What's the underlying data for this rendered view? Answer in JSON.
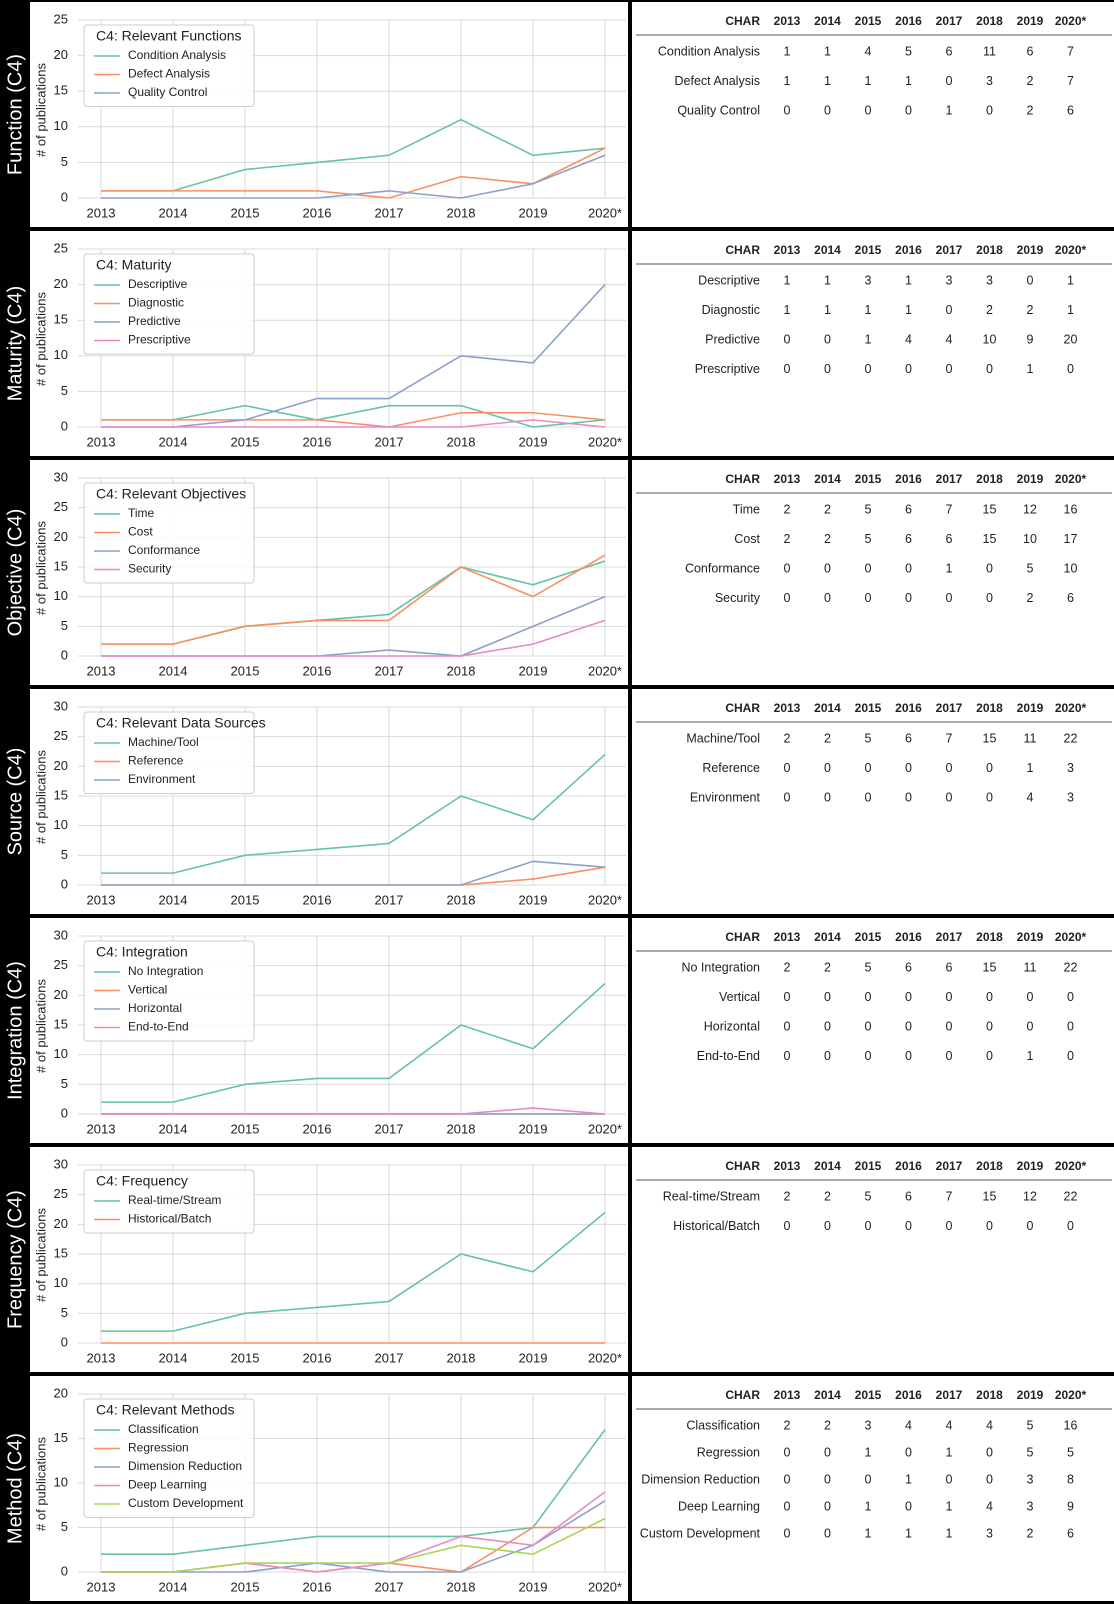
{
  "chart_data": [
    {
      "type": "line",
      "row_label": "Function (C4)",
      "ylabel": "# of publications",
      "legend_title": "C4: Relevant Functions",
      "table_header": "CHAR",
      "categories": [
        "2013",
        "2014",
        "2015",
        "2016",
        "2017",
        "2018",
        "2019",
        "2020*"
      ],
      "series": [
        {
          "name": "Condition Analysis",
          "color": "#66c2a5",
          "values": [
            1,
            1,
            4,
            5,
            6,
            11,
            6,
            7
          ]
        },
        {
          "name": "Defect Analysis",
          "color": "#fc8d62",
          "values": [
            1,
            1,
            1,
            1,
            0,
            3,
            2,
            7
          ]
        },
        {
          "name": "Quality Control",
          "color": "#8da0cb",
          "values": [
            0,
            0,
            0,
            0,
            1,
            0,
            2,
            6
          ]
        }
      ],
      "ylim": [
        0,
        25
      ],
      "yticks": [
        0,
        5,
        10,
        15,
        20,
        25
      ],
      "grid": true
    },
    {
      "type": "line",
      "row_label": "Maturity (C4)",
      "ylabel": "# of publications",
      "legend_title": "C4: Maturity",
      "table_header": "CHAR",
      "categories": [
        "2013",
        "2014",
        "2015",
        "2016",
        "2017",
        "2018",
        "2019",
        "2020*"
      ],
      "series": [
        {
          "name": "Descriptive",
          "color": "#66c2a5",
          "values": [
            1,
            1,
            3,
            1,
            3,
            3,
            0,
            1
          ]
        },
        {
          "name": "Diagnostic",
          "color": "#fc8d62",
          "values": [
            1,
            1,
            1,
            1,
            0,
            2,
            2,
            1
          ]
        },
        {
          "name": "Predictive",
          "color": "#8da0cb",
          "values": [
            0,
            0,
            1,
            4,
            4,
            10,
            9,
            20
          ]
        },
        {
          "name": "Prescriptive",
          "color": "#e78ac3",
          "values": [
            0,
            0,
            0,
            0,
            0,
            0,
            1,
            0
          ]
        }
      ],
      "ylim": [
        0,
        25
      ],
      "yticks": [
        0,
        5,
        10,
        15,
        20,
        25
      ],
      "grid": true
    },
    {
      "type": "line",
      "row_label": "Objective (C4)",
      "ylabel": "# of publications",
      "legend_title": "C4: Relevant Objectives",
      "table_header": "CHAR",
      "categories": [
        "2013",
        "2014",
        "2015",
        "2016",
        "2017",
        "2018",
        "2019",
        "2020*"
      ],
      "series": [
        {
          "name": "Time",
          "color": "#66c2a5",
          "values": [
            2,
            2,
            5,
            6,
            7,
            15,
            12,
            16
          ]
        },
        {
          "name": "Cost",
          "color": "#fc8d62",
          "values": [
            2,
            2,
            5,
            6,
            6,
            15,
            10,
            17
          ]
        },
        {
          "name": "Conformance",
          "color": "#8da0cb",
          "values": [
            0,
            0,
            0,
            0,
            1,
            0,
            5,
            10
          ]
        },
        {
          "name": "Security",
          "color": "#e78ac3",
          "values": [
            0,
            0,
            0,
            0,
            0,
            0,
            2,
            6
          ]
        }
      ],
      "ylim": [
        0,
        30
      ],
      "yticks": [
        0,
        5,
        10,
        15,
        20,
        25,
        30
      ],
      "grid": true
    },
    {
      "type": "line",
      "row_label": "Source (C4)",
      "ylabel": "# of publications",
      "legend_title": "C4: Relevant Data Sources",
      "table_header": "CHAR",
      "categories": [
        "2013",
        "2014",
        "2015",
        "2016",
        "2017",
        "2018",
        "2019",
        "2020*"
      ],
      "series": [
        {
          "name": "Machine/Tool",
          "color": "#66c2a5",
          "values": [
            2,
            2,
            5,
            6,
            7,
            15,
            11,
            22
          ]
        },
        {
          "name": "Reference",
          "color": "#fc8d62",
          "values": [
            0,
            0,
            0,
            0,
            0,
            0,
            1,
            3
          ]
        },
        {
          "name": "Environment",
          "color": "#8da0cb",
          "values": [
            0,
            0,
            0,
            0,
            0,
            0,
            4,
            3
          ]
        }
      ],
      "ylim": [
        0,
        30
      ],
      "yticks": [
        0,
        5,
        10,
        15,
        20,
        25,
        30
      ],
      "grid": true
    },
    {
      "type": "line",
      "row_label": "Integration (C4)",
      "ylabel": "# of publications",
      "legend_title": "C4: Integration",
      "table_header": "CHAR",
      "categories": [
        "2013",
        "2014",
        "2015",
        "2016",
        "2017",
        "2018",
        "2019",
        "2020*"
      ],
      "series": [
        {
          "name": "No Integration",
          "color": "#66c2a5",
          "values": [
            2,
            2,
            5,
            6,
            6,
            15,
            11,
            22
          ]
        },
        {
          "name": "Vertical",
          "color": "#fc8d62",
          "values": [
            0,
            0,
            0,
            0,
            0,
            0,
            0,
            0
          ]
        },
        {
          "name": "Horizontal",
          "color": "#8da0cb",
          "values": [
            0,
            0,
            0,
            0,
            0,
            0,
            0,
            0
          ]
        },
        {
          "name": "End-to-End",
          "color": "#e78ac3",
          "values": [
            0,
            0,
            0,
            0,
            0,
            0,
            1,
            0
          ]
        }
      ],
      "ylim": [
        0,
        30
      ],
      "yticks": [
        0,
        5,
        10,
        15,
        20,
        25,
        30
      ],
      "grid": true
    },
    {
      "type": "line",
      "row_label": "Frequency (C4)",
      "ylabel": "# of publications",
      "legend_title": "C4: Frequency",
      "table_header": "CHAR",
      "categories": [
        "2013",
        "2014",
        "2015",
        "2016",
        "2017",
        "2018",
        "2019",
        "2020*"
      ],
      "series": [
        {
          "name": "Real-time/Stream",
          "color": "#66c2a5",
          "values": [
            2,
            2,
            5,
            6,
            7,
            15,
            12,
            22
          ]
        },
        {
          "name": "Historical/Batch",
          "color": "#fc8d62",
          "values": [
            0,
            0,
            0,
            0,
            0,
            0,
            0,
            0
          ]
        }
      ],
      "ylim": [
        0,
        30
      ],
      "yticks": [
        0,
        5,
        10,
        15,
        20,
        25,
        30
      ],
      "grid": true
    },
    {
      "type": "line",
      "row_label": "Method (C4)",
      "ylabel": "# of publications",
      "legend_title": "C4: Relevant Methods",
      "table_header": "CHAR",
      "categories": [
        "2013",
        "2014",
        "2015",
        "2016",
        "2017",
        "2018",
        "2019",
        "2020*"
      ],
      "series": [
        {
          "name": "Classification",
          "color": "#66c2a5",
          "values": [
            2,
            2,
            3,
            4,
            4,
            4,
            5,
            16
          ]
        },
        {
          "name": "Regression",
          "color": "#fc8d62",
          "values": [
            0,
            0,
            1,
            0,
            1,
            0,
            5,
            5
          ]
        },
        {
          "name": "Dimension Reduction",
          "color": "#8da0cb",
          "values": [
            0,
            0,
            0,
            1,
            0,
            0,
            3,
            8
          ]
        },
        {
          "name": "Deep Learning",
          "color": "#e78ac3",
          "values": [
            0,
            0,
            1,
            0,
            1,
            4,
            3,
            9
          ]
        },
        {
          "name": "Custom Development",
          "color": "#a6d854",
          "values": [
            0,
            0,
            1,
            1,
            1,
            3,
            2,
            6
          ]
        }
      ],
      "ylim": [
        0,
        20
      ],
      "yticks": [
        0,
        5,
        10,
        15,
        20
      ],
      "grid": true
    }
  ]
}
